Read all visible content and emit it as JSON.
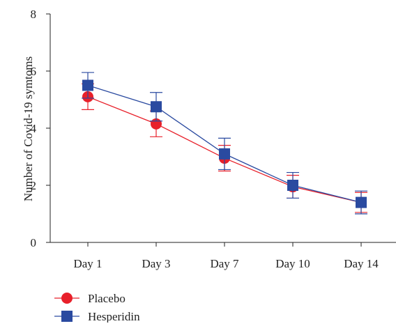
{
  "chart_data": {
    "type": "line",
    "title": "",
    "xlabel": "",
    "ylabel": "Number of Covid-19 symtoms",
    "categories": [
      "Day 1",
      "Day 3",
      "Day 7",
      "Day 10",
      "Day 14"
    ],
    "ylim": [
      0,
      8
    ],
    "yticks": [
      0,
      2,
      4,
      6,
      8
    ],
    "grid": false,
    "legend_position": "bottom-left",
    "series": [
      {
        "name": "Placebo",
        "color": "#e8202a",
        "marker": "circle",
        "values": [
          5.1,
          4.15,
          2.95,
          1.95,
          1.4
        ],
        "error": [
          0.45,
          0.45,
          0.45,
          0.4,
          0.35
        ]
      },
      {
        "name": "Hesperidin",
        "color": "#2a4aa0",
        "marker": "square",
        "values": [
          5.5,
          4.75,
          3.1,
          2.0,
          1.4
        ],
        "error": [
          0.45,
          0.5,
          0.55,
          0.45,
          0.4
        ]
      }
    ]
  }
}
